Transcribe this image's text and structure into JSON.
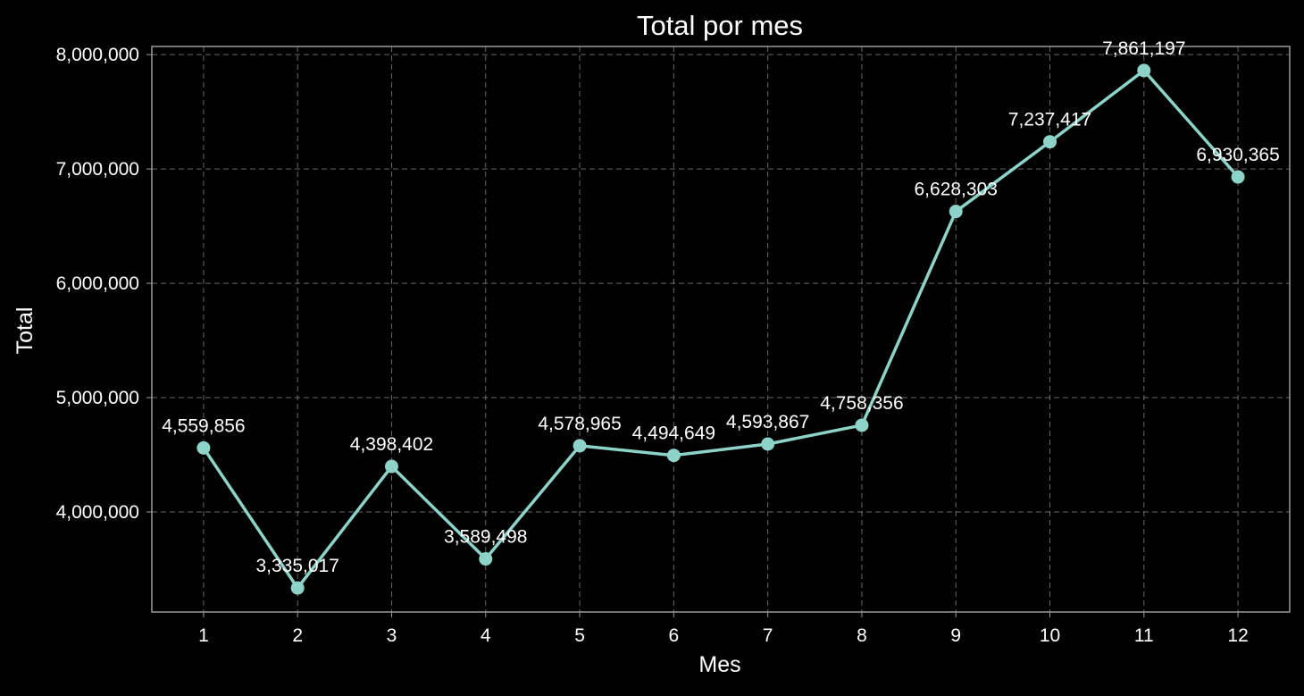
{
  "chart_data": {
    "type": "line",
    "title": "Total por mes",
    "xlabel": "Mes",
    "ylabel": "Total",
    "x": [
      1,
      2,
      3,
      4,
      5,
      6,
      7,
      8,
      9,
      10,
      11,
      12
    ],
    "x_tick_labels": [
      "1",
      "2",
      "3",
      "4",
      "5",
      "6",
      "7",
      "8",
      "9",
      "10",
      "11",
      "12"
    ],
    "y_tick_values": [
      4000000,
      5000000,
      6000000,
      7000000,
      8000000
    ],
    "y_tick_labels": [
      "4,000,000",
      "5,000,000",
      "6,000,000",
      "7,000,000",
      "8,000,000"
    ],
    "series": [
      {
        "values": [
          4559856,
          3335017,
          4398402,
          3589498,
          4578965,
          4494649,
          4593867,
          4758356,
          6628303,
          7237417,
          7861197,
          6930365
        ],
        "data_labels": [
          "4,559,856",
          "3,335,017",
          "4,398,402",
          "3,589,498",
          "4,578,965",
          "4,494,649",
          "4,593,867",
          "4,758,356",
          "6,628,303",
          "7,237,417",
          "7,861,197",
          "6,930,365"
        ],
        "color": "#8dd3c7"
      }
    ],
    "xlim": [
      0.45,
      12.55
    ],
    "ylim": [
      3124708,
      8071506
    ],
    "grid": true,
    "background_color": "#000000",
    "text_color": "#ffffff",
    "grid_color": "#8a8a8a",
    "axes_color": "#9a9a9a"
  }
}
